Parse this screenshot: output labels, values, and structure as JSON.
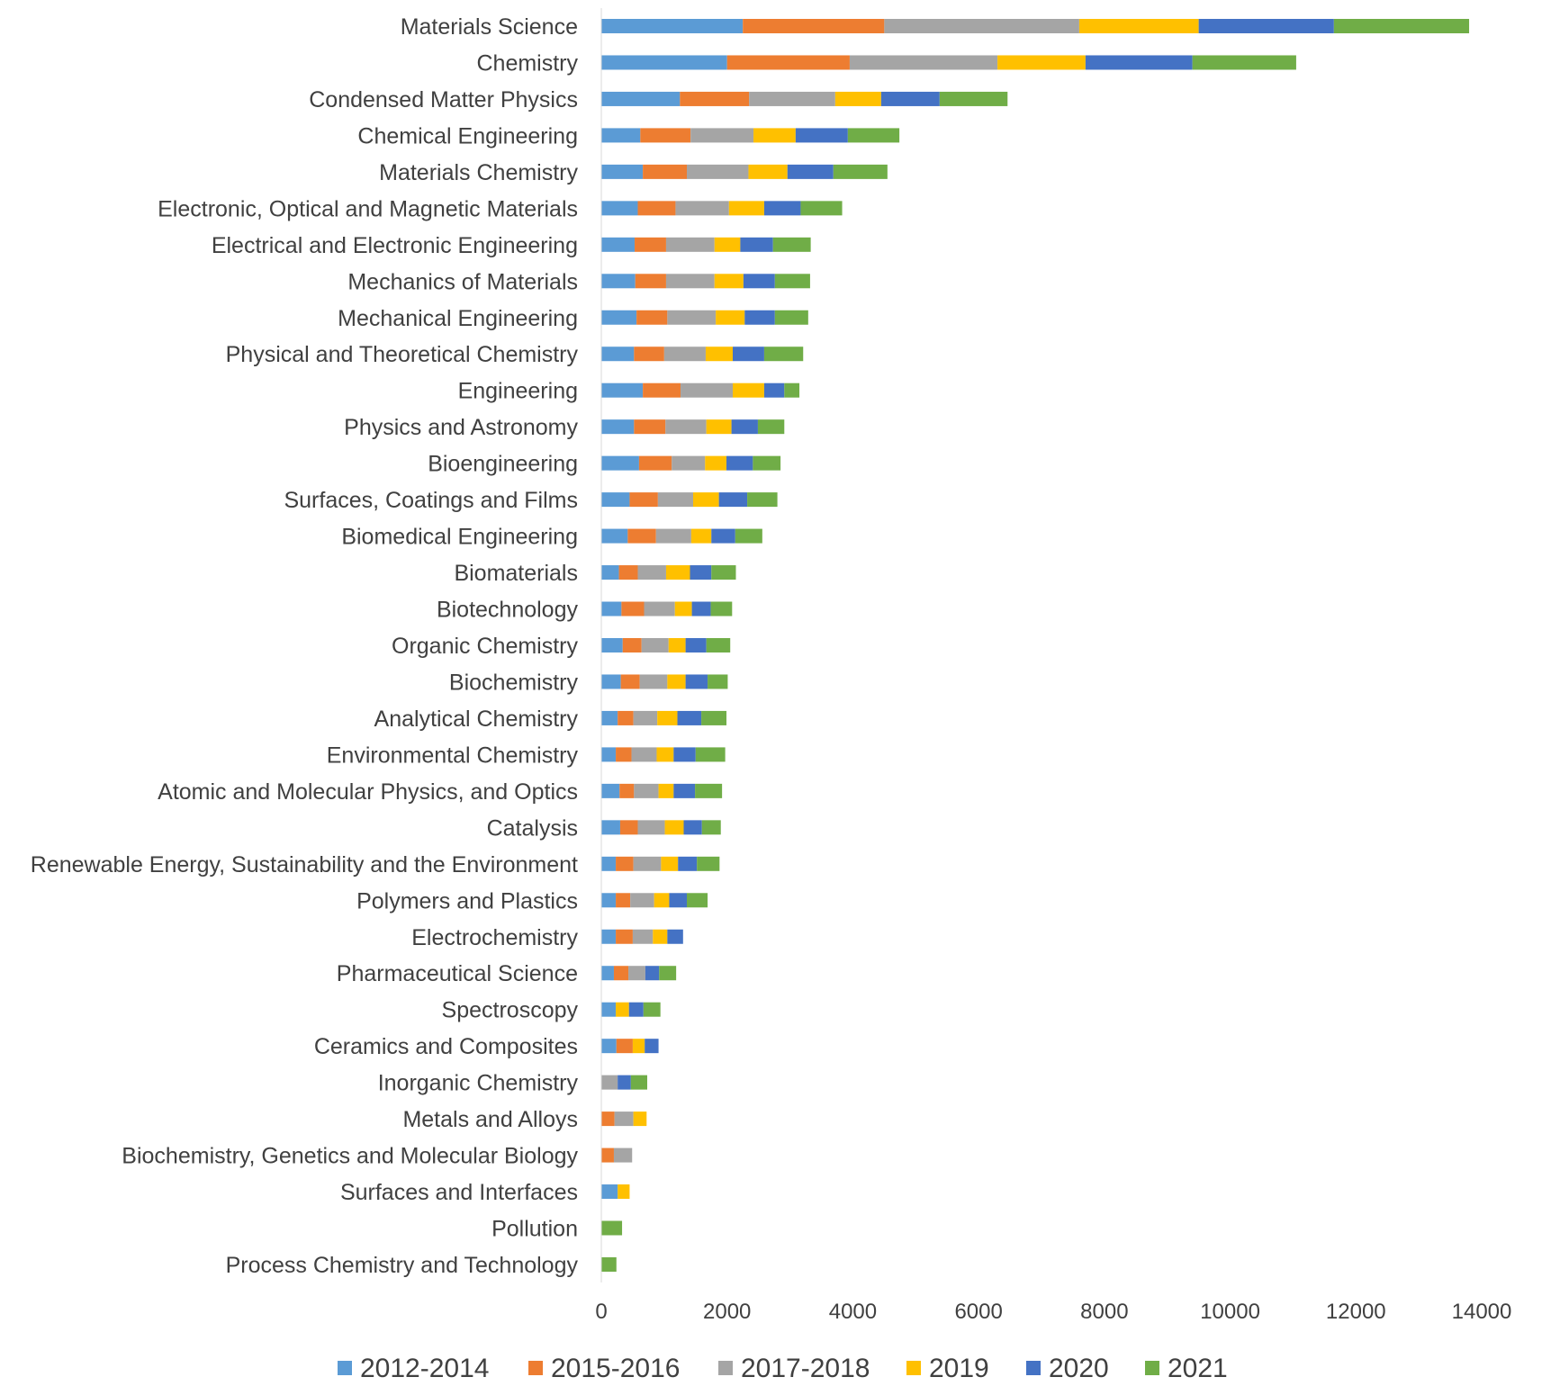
{
  "chart_data": {
    "type": "bar",
    "orientation": "horizontal",
    "stacked": true,
    "title": "",
    "xlabel": "",
    "ylabel": "",
    "xlim": [
      0,
      14000
    ],
    "xticks": [
      0,
      2000,
      4000,
      6000,
      8000,
      10000,
      12000,
      14000
    ],
    "legend_position": "bottom",
    "grid": false,
    "categories": [
      "Materials Science",
      "Chemistry",
      "Condensed Matter Physics",
      "Chemical Engineering",
      "Materials Chemistry",
      "Electronic, Optical and Magnetic Materials",
      "Electrical and Electronic Engineering",
      "Mechanics of Materials",
      "Mechanical Engineering",
      "Physical and Theoretical Chemistry",
      "Engineering",
      "Physics and Astronomy",
      "Bioengineering",
      "Surfaces, Coatings and Films",
      "Biomedical Engineering",
      "Biomaterials",
      "Biotechnology",
      "Organic Chemistry",
      "Biochemistry",
      "Analytical Chemistry",
      "Environmental Chemistry",
      "Atomic and Molecular Physics, and Optics",
      "Catalysis",
      "Renewable Energy, Sustainability and the Environment",
      "Polymers and Plastics",
      "Electrochemistry",
      "Pharmaceutical Science",
      "Spectroscopy",
      "Ceramics and Composites",
      "Inorganic Chemistry",
      "Metals and Alloys",
      "Biochemistry, Genetics and Molecular Biology",
      "Surfaces and Interfaces",
      "Pollution",
      "Process Chemistry and Technology"
    ],
    "series": [
      {
        "name": "2012-2014",
        "color": "#5B9BD5",
        "values": [
          2250,
          2000,
          1250,
          620,
          660,
          580,
          530,
          540,
          560,
          520,
          660,
          520,
          600,
          450,
          420,
          280,
          320,
          340,
          310,
          260,
          230,
          290,
          300,
          230,
          230,
          230,
          200,
          230,
          240,
          0,
          0,
          0,
          260,
          0,
          0
        ]
      },
      {
        "name": "2015-2016",
        "color": "#ED7D31",
        "values": [
          2250,
          1950,
          1100,
          800,
          700,
          600,
          500,
          490,
          490,
          480,
          600,
          500,
          520,
          450,
          450,
          300,
          360,
          300,
          300,
          250,
          250,
          230,
          280,
          280,
          230,
          270,
          230,
          0,
          260,
          0,
          210,
          200,
          0,
          0,
          0
        ]
      },
      {
        "name": "2017-2018",
        "color": "#A5A5A5",
        "values": [
          3100,
          2350,
          1370,
          1000,
          980,
          850,
          770,
          770,
          770,
          660,
          830,
          650,
          530,
          560,
          560,
          450,
          490,
          430,
          440,
          380,
          400,
          390,
          430,
          440,
          380,
          320,
          270,
          0,
          0,
          260,
          300,
          290,
          0,
          0,
          0
        ]
      },
      {
        "name": "2019",
        "color": "#FFC000",
        "values": [
          1900,
          1400,
          730,
          670,
          620,
          560,
          410,
          460,
          460,
          430,
          500,
          400,
          340,
          410,
          320,
          380,
          270,
          270,
          290,
          320,
          270,
          240,
          300,
          270,
          240,
          230,
          0,
          210,
          190,
          0,
          210,
          0,
          190,
          0,
          0
        ]
      },
      {
        "name": "2020",
        "color": "#4472C4",
        "values": [
          2150,
          1700,
          930,
          830,
          730,
          580,
          520,
          500,
          480,
          500,
          320,
          420,
          420,
          450,
          380,
          340,
          300,
          330,
          350,
          380,
          350,
          340,
          290,
          300,
          280,
          250,
          220,
          230,
          220,
          210,
          0,
          0,
          0,
          0,
          0
        ]
      },
      {
        "name": "2021",
        "color": "#70AD47",
        "values": [
          2150,
          1650,
          1080,
          820,
          860,
          660,
          600,
          560,
          530,
          620,
          240,
          420,
          440,
          480,
          430,
          390,
          340,
          380,
          320,
          400,
          470,
          430,
          300,
          360,
          330,
          0,
          270,
          270,
          0,
          260,
          0,
          0,
          0,
          330,
          240
        ]
      }
    ]
  }
}
